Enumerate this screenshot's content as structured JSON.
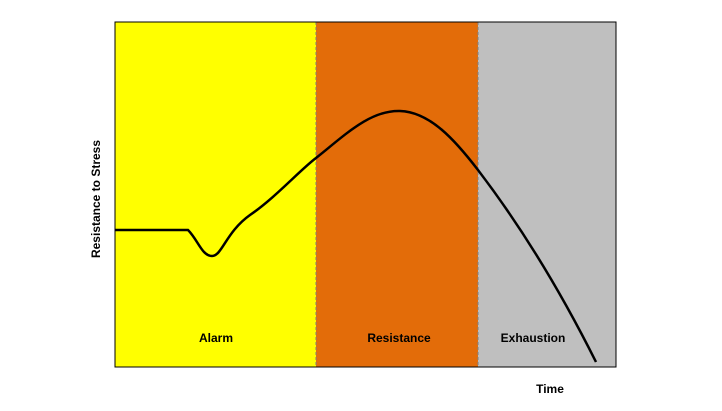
{
  "axes": {
    "x_label": "Time",
    "y_label": "Resistance to Stress"
  },
  "phases": [
    {
      "label": "Alarm"
    },
    {
      "label": "Resistance"
    },
    {
      "label": "Exhaustion"
    }
  ]
}
